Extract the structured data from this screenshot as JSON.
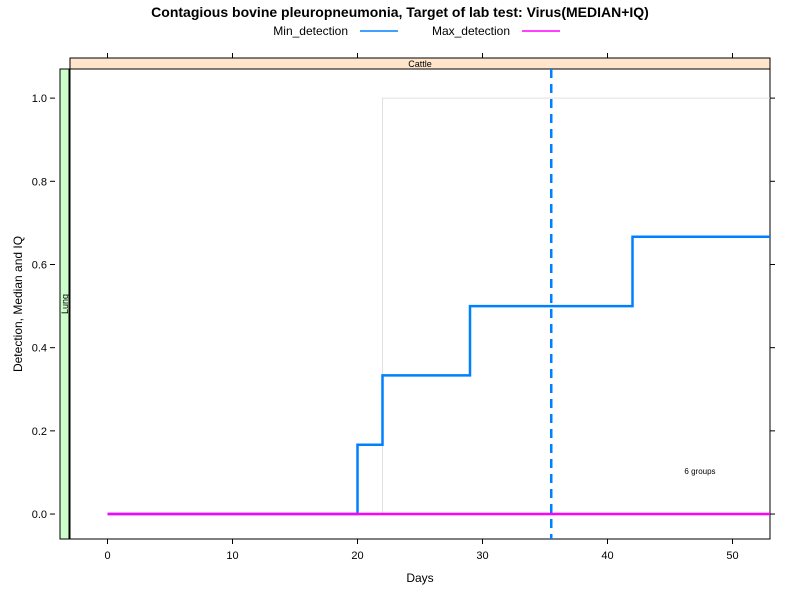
{
  "chart_data": {
    "type": "line",
    "title": "Contagious bovine pleuropneumonia, Target of lab test: Virus(MEDIAN+IQ)",
    "xlabel": "Days",
    "ylabel": "Detection, Median and IQ",
    "xlim": [
      -3,
      53
    ],
    "ylim": [
      -0.06,
      1.07
    ],
    "x_ticks": [
      0,
      10,
      20,
      30,
      40,
      50
    ],
    "y_ticks": [
      0.0,
      0.2,
      0.4,
      0.6,
      0.8,
      1.0
    ],
    "x_tick_labels": [
      "0",
      "10",
      "20",
      "30",
      "40",
      "50"
    ],
    "y_tick_labels": [
      "0.0",
      "0.2",
      "0.4",
      "0.6",
      "0.8",
      "1.0"
    ],
    "panel_strip_top": "Cattle",
    "panel_strip_left": "Lung",
    "annotation": "6 groups",
    "legend": {
      "placement": "top",
      "entries": [
        {
          "name": "Min_detection",
          "color": "#0080ff"
        },
        {
          "name": "Max_detection",
          "color": "#ff00ff"
        }
      ]
    },
    "series": [
      {
        "name": "Min_detection",
        "color": "#0080ff",
        "step": true,
        "points": [
          [
            0,
            0
          ],
          [
            20,
            0
          ],
          [
            20,
            0.1667
          ],
          [
            22,
            0.1667
          ],
          [
            22,
            0.3333
          ],
          [
            29,
            0.3333
          ],
          [
            29,
            0.5
          ],
          [
            42,
            0.5
          ],
          [
            42,
            0.6667
          ],
          [
            53,
            0.6667
          ]
        ]
      },
      {
        "name": "Max_detection",
        "color": "#ff00ff",
        "step": true,
        "points": [
          [
            0,
            0
          ],
          [
            53,
            0
          ]
        ]
      }
    ],
    "iq_band": {
      "color": "#e0e0e0",
      "points": [
        [
          22,
          0
        ],
        [
          22,
          1.0
        ],
        [
          53,
          1.0
        ]
      ]
    },
    "median_line": {
      "x": 35.5,
      "color": "#0080ff",
      "style": "dashed"
    }
  }
}
